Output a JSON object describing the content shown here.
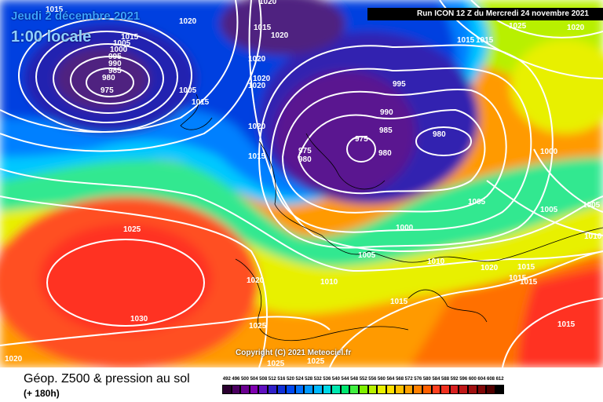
{
  "header": {
    "date": "Jeudi 2 décembre 2021",
    "time": "1:00 locale",
    "run": "Run ICON 12 Z du Mercredi 24 novembre 2021"
  },
  "copyright": "Copyright (C) 2021 Meteociel.fr",
  "footer": {
    "title": "Géop. Z500 & pression au sol",
    "subtitle": "(+ 180h)"
  },
  "legend": {
    "labels": [
      "492",
      "496",
      "500",
      "504",
      "508",
      "512",
      "516",
      "520",
      "524",
      "528",
      "532",
      "536",
      "540",
      "544",
      "548",
      "552",
      "556",
      "560",
      "564",
      "568",
      "572",
      "576",
      "580",
      "584",
      "588",
      "592",
      "596",
      "600",
      "604",
      "608",
      "612"
    ],
    "colors": [
      "#2b0030",
      "#4a0060",
      "#6a0090",
      "#7f00b0",
      "#6010c0",
      "#3020c8",
      "#1030d8",
      "#0048f0",
      "#0070ff",
      "#0098ff",
      "#00b8ff",
      "#00d8e8",
      "#00e8b0",
      "#00e870",
      "#40f040",
      "#80f000",
      "#b8f000",
      "#e8f000",
      "#ffe000",
      "#ffc000",
      "#ffa000",
      "#ff8000",
      "#ff6000",
      "#ff4020",
      "#f03020",
      "#d82020",
      "#c01818",
      "#a01010",
      "#800808",
      "#500000",
      "#000000"
    ]
  },
  "isobars": {
    "labels": [
      "1015",
      "1020",
      "1015",
      "1005",
      "1000",
      "995",
      "990",
      "985",
      "980",
      "975",
      "1005",
      "1015",
      "1020",
      "1015",
      "1020",
      "1020",
      "1020",
      "1020",
      "1020",
      "1015",
      "995",
      "990",
      "985",
      "980",
      "975",
      "980",
      "980",
      "975",
      "1005",
      "1000",
      "1005",
      "1010",
      "1005",
      "1010",
      "1015",
      "1020",
      "1015",
      "1015",
      "1015",
      "1020",
      "1025",
      "1030",
      "1025",
      "1025",
      "1025",
      "1020",
      "1015",
      "1000",
      "1005",
      "1015",
      "1025",
      "1020",
      "1015",
      "1010"
    ]
  }
}
